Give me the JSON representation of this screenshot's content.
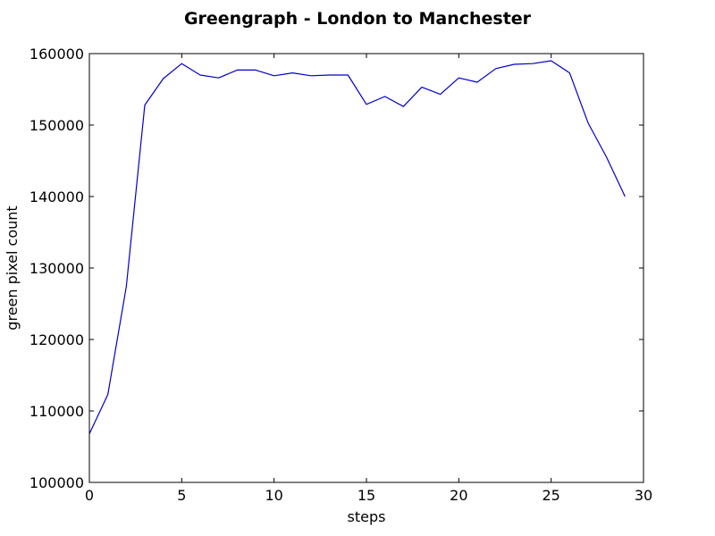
{
  "chart_data": {
    "type": "line",
    "title": "Greengraph - London to Manchester",
    "xlabel": "steps",
    "ylabel": "green pixel count",
    "xlim": [
      0,
      30
    ],
    "ylim": [
      100000,
      160000
    ],
    "xticks": [
      0,
      5,
      10,
      15,
      20,
      25,
      30
    ],
    "yticks": [
      100000,
      110000,
      120000,
      130000,
      140000,
      150000,
      160000
    ],
    "grid": false,
    "legend": "none",
    "series": [
      {
        "color": "#0000cc",
        "x": [
          0,
          1,
          2,
          3,
          4,
          5,
          6,
          7,
          8,
          9,
          10,
          11,
          12,
          13,
          14,
          15,
          16,
          17,
          18,
          19,
          20,
          21,
          22,
          23,
          24,
          25,
          26,
          27,
          28,
          29
        ],
        "y": [
          106800,
          112300,
          127400,
          152800,
          156500,
          158600,
          157000,
          156600,
          157700,
          157700,
          156900,
          157300,
          156900,
          157000,
          157000,
          152900,
          154000,
          152600,
          155300,
          154300,
          156600,
          156000,
          157900,
          158500,
          158600,
          159000,
          157300,
          150300,
          145500,
          140000
        ]
      }
    ]
  }
}
